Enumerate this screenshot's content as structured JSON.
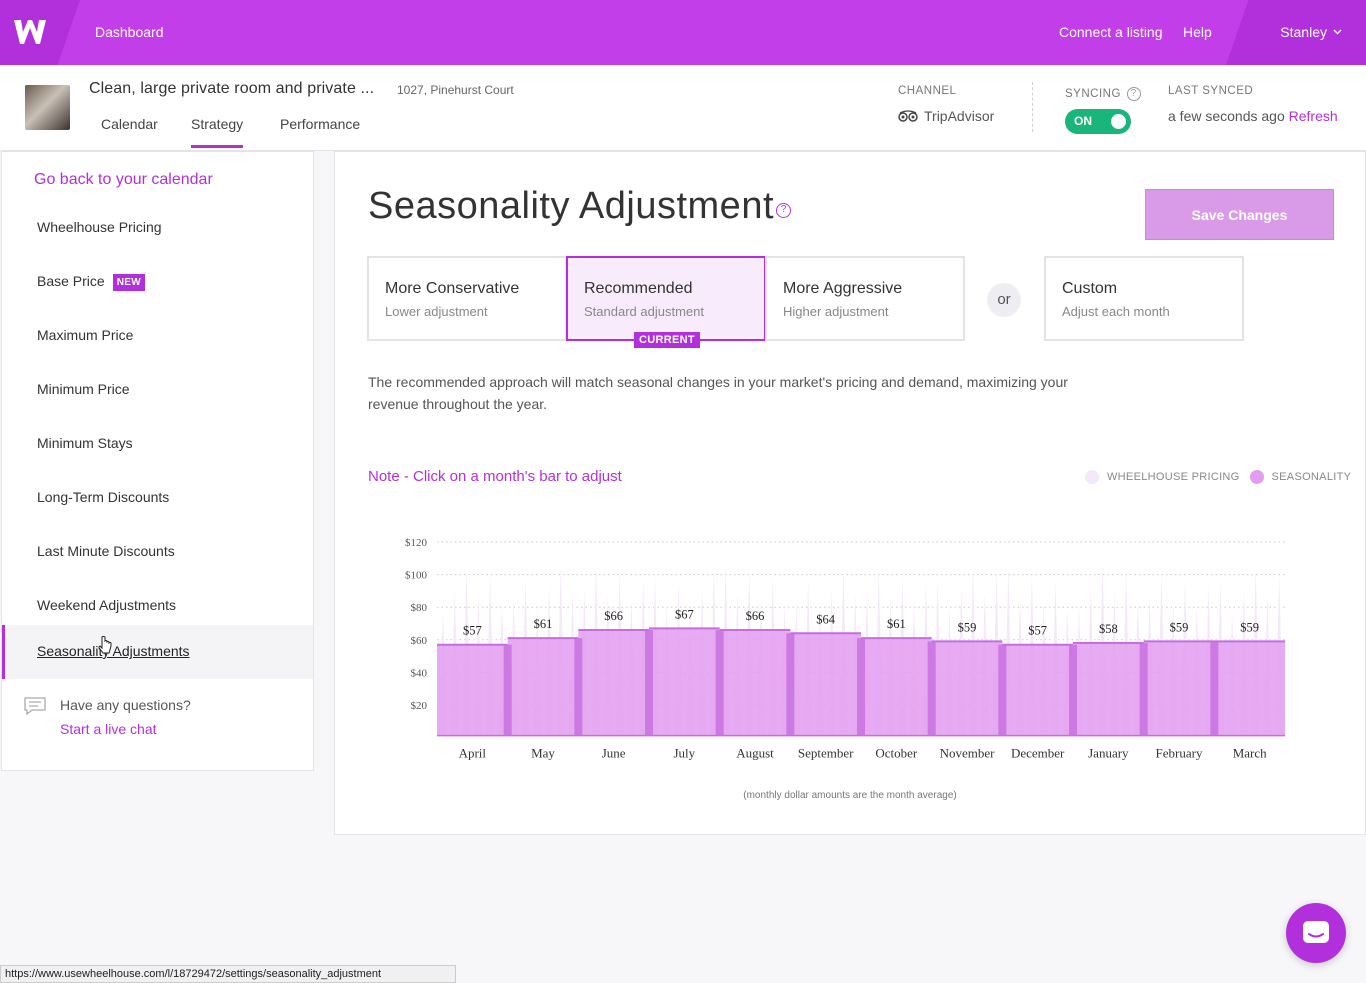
{
  "topbar": {
    "dashboard": "Dashboard",
    "connect_listing": "Connect a listing",
    "help": "Help",
    "user": "Stanley",
    "brand_color": "#c23ee8"
  },
  "listing": {
    "title": "Clean, large private room and private ...",
    "address": "1027, Pinehurst Court",
    "tabs": [
      {
        "label": "Calendar"
      },
      {
        "label": "Strategy"
      },
      {
        "label": "Performance"
      }
    ],
    "channel_label": "CHANNEL",
    "channel_value": "TripAdvisor",
    "syncing_label": "SYNCING",
    "syncing_state": "ON",
    "last_synced_label": "LAST SYNCED",
    "last_synced_value": "a few seconds ago",
    "refresh": "Refresh"
  },
  "sidebar": {
    "back": "Go back to your calendar",
    "items": [
      {
        "label": "Wheelhouse Pricing"
      },
      {
        "label": "Base Price",
        "badge": "NEW"
      },
      {
        "label": "Maximum Price"
      },
      {
        "label": "Minimum Price"
      },
      {
        "label": "Minimum Stays"
      },
      {
        "label": "Long-Term Discounts"
      },
      {
        "label": "Last Minute Discounts"
      },
      {
        "label": "Weekend Adjustments"
      },
      {
        "label": "Seasonality Adjustments"
      }
    ],
    "questions": "Have any questions?",
    "chat": "Start a live chat"
  },
  "main": {
    "title": "Seasonality Adjustment",
    "help_glyph": "?",
    "save": "Save Changes",
    "options": [
      {
        "title": "More Conservative",
        "sub": "Lower adjustment"
      },
      {
        "title": "Recommended",
        "sub": "Standard adjustment",
        "tag": "CURRENT"
      },
      {
        "title": "More Aggressive",
        "sub": "Higher adjustment"
      },
      {
        "title": "Custom",
        "sub": "Adjust each month"
      }
    ],
    "or": "or",
    "description": "The recommended approach will match seasonal changes in your market's pricing and demand, maximizing your revenue throughout the year.",
    "note": "Note - Click on a month's bar to adjust",
    "legend": [
      {
        "label": "WHEELHOUSE PRICING",
        "color": "#f4e9f8"
      },
      {
        "label": "SEASONALITY",
        "color": "#e29cf0"
      }
    ],
    "footnote": "(monthly dollar amounts are the month average)"
  },
  "chart_data": {
    "type": "bar",
    "categories": [
      "April",
      "May",
      "June",
      "July",
      "August",
      "September",
      "October",
      "November",
      "December",
      "January",
      "February",
      "March"
    ],
    "series": [
      {
        "name": "SEASONALITY",
        "values": [
          57,
          61,
          66,
          67,
          66,
          64,
          61,
          59,
          57,
          58,
          59,
          59
        ]
      }
    ],
    "data_labels": [
      "$57",
      "$61",
      "$66",
      "$67",
      "$66",
      "$64",
      "$61",
      "$59",
      "$57",
      "$58",
      "$59",
      "$59"
    ],
    "yticks": [
      "$20",
      "$40",
      "$60",
      "$80",
      "$100",
      "$120"
    ],
    "ytick_values": [
      20,
      40,
      60,
      80,
      100,
      120
    ],
    "ylim": [
      0,
      120
    ],
    "bar_color": "#e29cf0",
    "divider_color": "#c76de0",
    "spike_color": "#f4e9f8"
  },
  "status_url": "https://www.usewheelhouse.com/l/18729472/settings/seasonality_adjustment"
}
